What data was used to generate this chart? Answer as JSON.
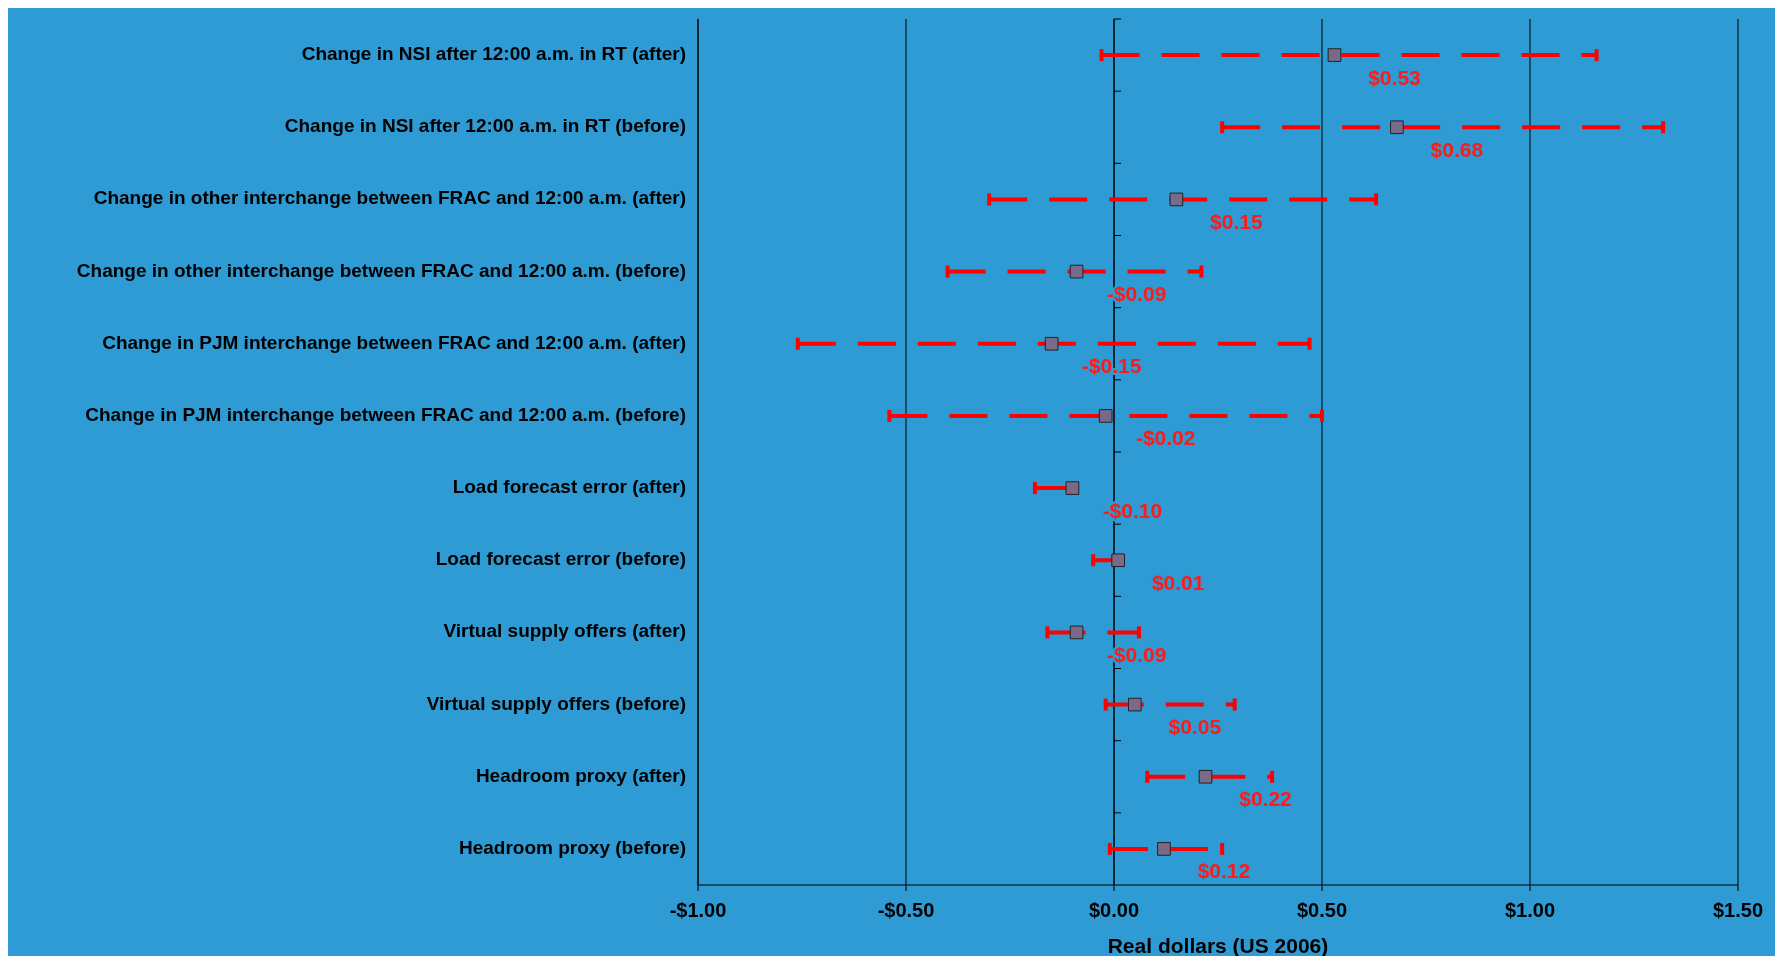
{
  "chart_data": {
    "type": "scatter",
    "orientation": "horizontal",
    "xlabel": "Real dollars (US 2006)",
    "categories": [
      "Change in NSI after 12:00 a.m. in RT (after)",
      "Change in NSI after 12:00 a.m. in RT (before)",
      "Change in other interchange between FRAC and 12:00 a.m. (after)",
      "Change in other interchange between FRAC and 12:00 a.m. (before)",
      "Change in PJM interchange between FRAC and 12:00 a.m. (after)",
      "Change in PJM interchange between FRAC and 12:00 a.m. (before)",
      "Load forecast error (after)",
      "Load forecast error (before)",
      "Virtual supply offers (after)",
      "Virtual supply offers (before)",
      "Headroom proxy (after)",
      "Headroom proxy (before)"
    ],
    "series": [
      {
        "color": "#7a6a8a",
        "values": [
          0.53,
          0.68,
          0.15,
          -0.09,
          -0.15,
          -0.02,
          -0.1,
          0.01,
          -0.09,
          0.05,
          0.22,
          0.12
        ],
        "errors": [
          [
            -0.03,
            1.16
          ],
          [
            0.26,
            1.32
          ],
          [
            -0.3,
            0.63
          ],
          [
            -0.4,
            0.21
          ],
          [
            -0.76,
            0.47
          ],
          [
            -0.54,
            0.5
          ],
          [
            -0.19,
            -0.09
          ],
          [
            -0.05,
            0.02
          ],
          [
            -0.16,
            0.06
          ],
          [
            -0.02,
            0.29
          ],
          [
            0.08,
            0.38
          ],
          [
            -0.01,
            0.26
          ]
        ],
        "value_labels": [
          "$0.53",
          "$0.68",
          "$0.15",
          "-$0.09",
          "-$0.15",
          "-$0.02",
          "-$0.10",
          "$0.01",
          "-$0.09",
          "$0.05",
          "$0.22",
          "$0.12"
        ]
      }
    ],
    "xlim": [
      -1,
      1.5
    ],
    "xticks": [
      {
        "value": -1,
        "label": "-$1.00"
      },
      {
        "value": -0.5,
        "label": "-$0.50"
      },
      {
        "value": 0,
        "label": "$0.00"
      },
      {
        "value": 0.5,
        "label": "$0.50"
      },
      {
        "value": 1,
        "label": "$1.00"
      },
      {
        "value": 1.5,
        "label": "$1.50"
      }
    ],
    "grid": "x",
    "marker": "square",
    "line_style": "dashed"
  }
}
